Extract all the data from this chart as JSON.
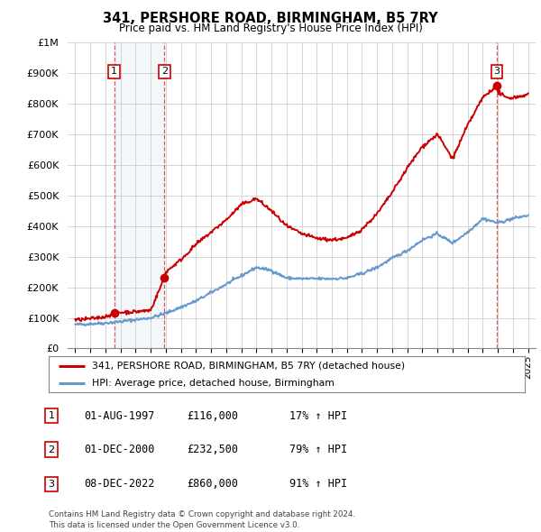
{
  "title": "341, PERSHORE ROAD, BIRMINGHAM, B5 7RY",
  "subtitle": "Price paid vs. HM Land Registry's House Price Index (HPI)",
  "sale_dates_num": [
    1997.58,
    2000.92,
    2022.92
  ],
  "sale_prices": [
    116000,
    232500,
    860000
  ],
  "sale_labels": [
    "1",
    "2",
    "3"
  ],
  "hpi_color": "#6699cc",
  "price_color": "#cc0000",
  "shaded_regions": [
    [
      1997.58,
      2000.92
    ]
  ],
  "legend_entries": [
    "341, PERSHORE ROAD, BIRMINGHAM, B5 7RY (detached house)",
    "HPI: Average price, detached house, Birmingham"
  ],
  "table_data": [
    [
      "1",
      "01-AUG-1997",
      "£116,000",
      "17% ↑ HPI"
    ],
    [
      "2",
      "01-DEC-2000",
      "£232,500",
      "79% ↑ HPI"
    ],
    [
      "3",
      "08-DEC-2022",
      "£860,000",
      "91% ↑ HPI"
    ]
  ],
  "footer": "Contains HM Land Registry data © Crown copyright and database right 2024.\nThis data is licensed under the Open Government Licence v3.0.",
  "ylim": [
    0,
    1000000
  ],
  "xlim": [
    1994.5,
    2025.5
  ],
  "yticks": [
    0,
    100000,
    200000,
    300000,
    400000,
    500000,
    600000,
    700000,
    800000,
    900000,
    1000000
  ],
  "ytick_labels": [
    "£0",
    "£100K",
    "£200K",
    "£300K",
    "£400K",
    "£500K",
    "£600K",
    "£700K",
    "£800K",
    "£900K",
    "£1M"
  ],
  "xtick_years": [
    1995,
    1996,
    1997,
    1998,
    1999,
    2000,
    2001,
    2002,
    2003,
    2004,
    2005,
    2006,
    2007,
    2008,
    2009,
    2010,
    2011,
    2012,
    2013,
    2014,
    2015,
    2016,
    2017,
    2018,
    2019,
    2020,
    2021,
    2022,
    2023,
    2024,
    2025
  ]
}
